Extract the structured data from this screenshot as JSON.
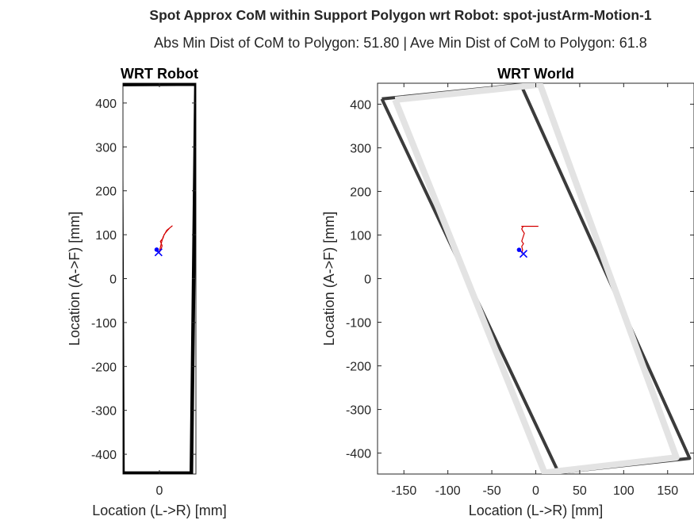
{
  "figure": {
    "title": "Spot Approx CoM within Support Polygon wrt Robot: spot-justArm-Motion-1",
    "subtitle": "Abs Min Dist of CoM to Polygon: 51.80   |   Ave Min Dist of CoM to Polygon: 61.8"
  },
  "chart_data": [
    {
      "type": "line",
      "title": "WRT Robot",
      "xlabel": "Location (L->R) [mm]",
      "ylabel": "Location (A->F) [mm]",
      "xlim": [
        -40,
        40
      ],
      "ylim": [
        -445,
        445
      ],
      "xticks": [
        0
      ],
      "yticks": [
        -400,
        -300,
        -200,
        -100,
        0,
        100,
        200,
        300,
        400
      ],
      "grid": false,
      "series": [
        {
          "role": "support-polygon",
          "color": "#000000",
          "x": [
            -42,
            40,
            35,
            -40,
            -42
          ],
          "y": [
            442,
            443,
            -443,
            -443,
            442
          ]
        },
        {
          "role": "com-trajectory",
          "color": "#d40000",
          "x": [
            0,
            2,
            3,
            1,
            4,
            5,
            8,
            11,
            14,
            8,
            4,
            2,
            0
          ],
          "y": [
            60,
            68,
            75,
            85,
            92,
            100,
            108,
            115,
            120,
            110,
            95,
            80,
            62
          ]
        }
      ],
      "markers": [
        {
          "symbol": "dot",
          "color": "#0000ff",
          "x": -3,
          "y": 66
        },
        {
          "symbol": "x",
          "color": "#0000ff",
          "x": -1,
          "y": 60
        }
      ]
    },
    {
      "type": "line",
      "title": "WRT World",
      "xlabel": "Location (L->R) [mm]",
      "ylabel": "Location (A->F) [mm]",
      "xlim": [
        -180,
        180
      ],
      "ylim": [
        -448,
        448
      ],
      "xticks": [
        -150,
        -100,
        -50,
        0,
        50,
        100,
        150
      ],
      "yticks": [
        -400,
        -300,
        -200,
        -100,
        0,
        100,
        200,
        300,
        400
      ],
      "grid": false,
      "series": [
        {
          "role": "support-polygon-start",
          "color": "#262626",
          "x": [
            -175,
            -17,
            175,
            26,
            -175
          ],
          "y": [
            412,
            445,
            -412,
            -445,
            412
          ]
        },
        {
          "role": "support-polygon-end",
          "color": "#e3e3e3",
          "x": [
            -160,
            5,
            160,
            10,
            -160
          ],
          "y": [
            410,
            445,
            -410,
            -445,
            410
          ]
        },
        {
          "role": "com-trajectory",
          "color": "#d40000",
          "x": [
            -16,
            -15,
            -16,
            -14,
            -16,
            -15,
            -14,
            -13,
            -15,
            -16,
            -15,
            -14,
            -16,
            3
          ],
          "y": [
            58,
            66,
            74,
            80,
            86,
            92,
            98,
            104,
            110,
            114,
            118,
            120,
            120,
            120
          ]
        }
      ],
      "markers": [
        {
          "symbol": "dot",
          "color": "#0000ff",
          "x": -19,
          "y": 66
        },
        {
          "symbol": "x",
          "color": "#0000ff",
          "x": -14,
          "y": 57
        }
      ]
    }
  ]
}
